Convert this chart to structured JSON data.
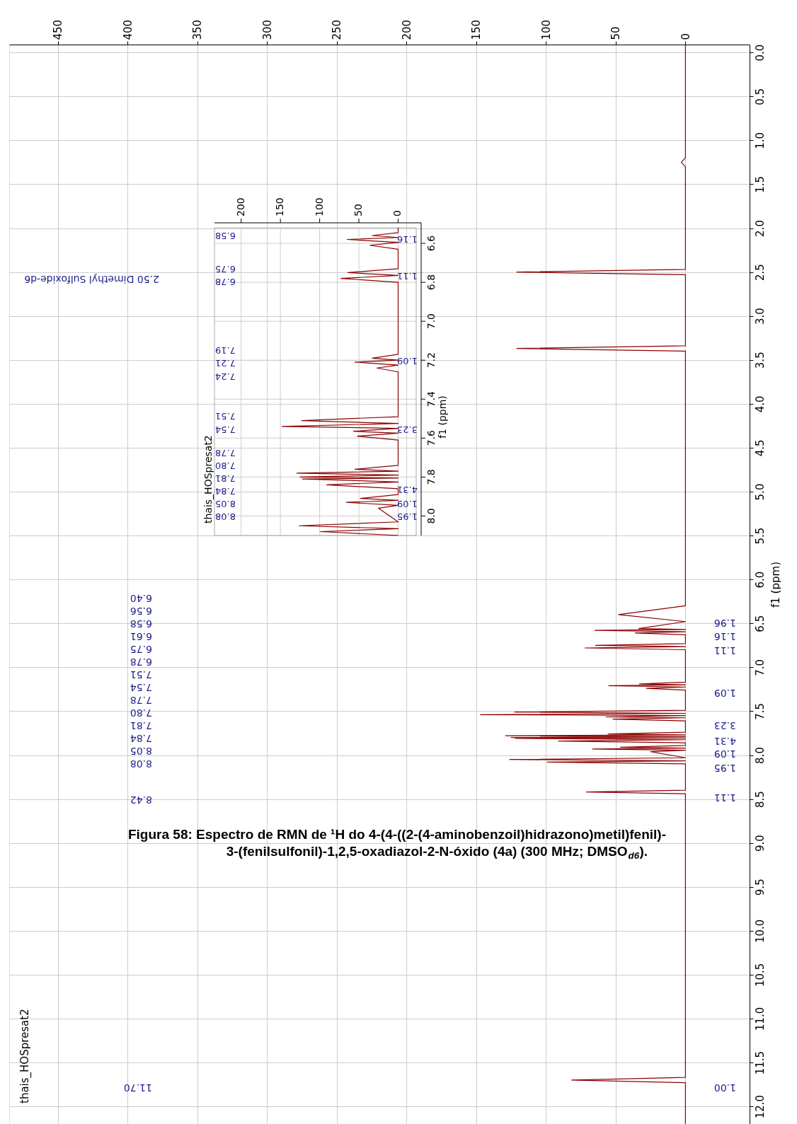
{
  "chart_data": [
    {
      "type": "line",
      "orientation": "horizontal",
      "xlim": [
        485,
        -46
      ],
      "xticks": [
        0,
        50,
        100,
        150,
        200,
        250,
        300,
        350,
        400,
        450
      ],
      "ylim": [
        12.2,
        -0.09
      ],
      "yticks": [
        {
          "value": 0,
          "label": "0.0"
        },
        0.5,
        {
          "value": 1,
          "label": "1.0"
        },
        1.5,
        {
          "value": 2,
          "label": "2.0"
        },
        2.5,
        {
          "value": 3,
          "label": "3.0"
        },
        3.5,
        {
          "value": 4,
          "label": "4.0"
        },
        4.5,
        {
          "value": 5,
          "label": "5.0"
        },
        5.5,
        {
          "value": 6,
          "label": "6.0"
        },
        6.5,
        {
          "value": 7,
          "label": "7.0"
        },
        7.5,
        {
          "value": 8,
          "label": "8.0"
        },
        8.5,
        {
          "value": 9,
          "label": "9.0"
        },
        9.5,
        {
          "value": 10,
          "label": "10.0"
        },
        10.5,
        {
          "value": 11,
          "label": "11.0"
        },
        11.5,
        {
          "value": 12,
          "label": "12.0"
        }
      ],
      "ylabel": "f1 (ppm)",
      "grid": true,
      "series": [
        {
          "color": "#8b0000",
          "x": [
            -0.09,
            1.2,
            1.25,
            1.3,
            2.47,
            2.5,
            2.53,
            3.34,
            3.37,
            3.4,
            6.3,
            6.4,
            6.48,
            6.56,
            6.57,
            6.58,
            6.595,
            6.61,
            6.63,
            6.73,
            6.75,
            6.765,
            6.78,
            6.8,
            7.17,
            7.19,
            7.2,
            7.21,
            7.225,
            7.24,
            7.26,
            7.49,
            7.51,
            7.525,
            7.54,
            7.55,
            7.565,
            7.575,
            7.59,
            7.61,
            7.74,
            7.76,
            7.77,
            7.78,
            7.79,
            7.8,
            7.805,
            7.81,
            7.825,
            7.84,
            7.86,
            7.89,
            7.91,
            7.92,
            7.93,
            7.945,
            7.96,
            8.03,
            8.05,
            8.065,
            8.08,
            8.1,
            8.4,
            8.42,
            8.44,
            11.67,
            11.7,
            11.73,
            12.2
          ],
          "values": [
            0,
            0,
            3,
            0,
            0,
            121,
            0,
            0,
            121,
            0,
            0,
            48,
            0,
            33.5,
            0,
            65,
            0,
            36,
            0,
            0,
            64.5,
            0,
            72,
            0,
            0,
            33,
            0,
            55,
            0,
            28,
            0,
            0,
            122.5,
            0,
            147,
            0,
            57,
            0,
            52,
            0,
            0,
            55.5,
            0,
            129,
            0,
            125,
            0,
            122,
            0,
            91,
            0,
            0,
            46.6,
            0,
            66.6,
            0,
            25,
            0,
            126,
            0,
            99,
            0,
            0,
            71,
            0,
            0,
            81.6,
            0,
            0
          ]
        }
      ],
      "annotations": [
        "2.50 Dimethyl Sulfoxide-d6",
        "6.40",
        "6.56",
        "6.58",
        "6.61",
        "6.75",
        "6.78",
        "7.51",
        "7.54",
        "7.78",
        "7.80",
        "7.81",
        "7.84",
        "8.05",
        "8.08",
        "8.42",
        "11.70",
        "1.96",
        "1.16",
        "1.11",
        "1.09",
        "3.23",
        "4.31",
        "1.09",
        "1.95",
        "1.11",
        "1.00",
        "thais_HOSpresat2",
        "Figura 58: Espectro de RMN de ¹H do 4-(4-((2-(4-aminobenzoil)hidrazono)metil)fenil)-\n3-(fenilsulfonil)-1,2,5-oxadiazol-2-N-óxido (4a)  (300 MHz; DMSO$_{d6}$)."
      ]
    },
    {
      "type": "line",
      "orientation": "horizontal",
      "xlim": [
        234,
        -23
      ],
      "xticks": [
        0,
        50,
        100,
        150,
        200
      ],
      "ylim": [
        8.1,
        6.52
      ],
      "yticks": [
        6.6,
        6.8,
        {
          "value": 7,
          "label": "7.0"
        },
        7.2,
        7.4,
        7.6,
        7.8,
        {
          "value": 8,
          "label": "8.0"
        }
      ],
      "ylabel": "f1 (ppm)",
      "grid": true,
      "series": [
        {
          "color": "#8b0000",
          "x": [
            6.52,
            6.545,
            6.56,
            6.57,
            6.58,
            6.595,
            6.61,
            6.63,
            6.73,
            6.75,
            6.765,
            6.78,
            6.8,
            7.17,
            7.19,
            7.2,
            7.21,
            7.225,
            7.24,
            7.26,
            7.49,
            7.51,
            7.525,
            7.54,
            7.55,
            7.565,
            7.575,
            7.59,
            7.61,
            7.74,
            7.76,
            7.77,
            7.78,
            7.79,
            7.8,
            7.805,
            7.81,
            7.825,
            7.84,
            7.86,
            7.89,
            7.91,
            7.92,
            7.93,
            7.945,
            7.96,
            8.03,
            8.05,
            8.065,
            8.08,
            8.1
          ],
          "values": [
            0,
            0,
            33,
            0,
            65,
            0,
            36,
            0,
            0,
            64,
            0,
            73,
            0,
            0,
            33,
            0,
            55,
            0,
            27,
            0,
            0,
            123,
            0,
            148,
            0,
            57,
            0,
            52,
            0,
            0,
            55,
            0,
            129,
            0,
            125,
            0,
            122,
            0,
            91,
            0,
            0,
            48,
            0,
            66,
            0,
            25,
            0,
            126,
            0,
            99,
            0
          ]
        }
      ],
      "annotations": [
        "6.58",
        "6.75",
        "6.78",
        "7.19",
        "7.21",
        "7.24",
        "7.51",
        "7.54",
        "7.78",
        "7.80",
        "7.81",
        "7.84",
        "8.05",
        "8.08",
        "1.16",
        "1.11",
        "1.09",
        "3.23",
        "4.31",
        "1.09",
        "1.95",
        "thais_HOSpresat2"
      ]
    }
  ]
}
